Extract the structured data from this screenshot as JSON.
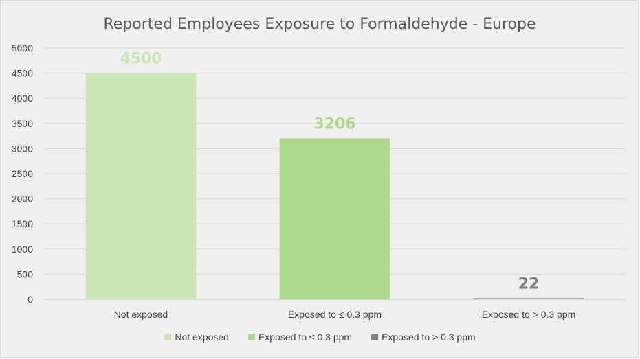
{
  "chart_data": {
    "type": "bar",
    "title": "Reported Employees Exposure to Formaldehyde - Europe",
    "xlabel": "",
    "ylabel": "",
    "categories": [
      "Not exposed",
      "Exposed to ≤ 0.3 ppm",
      "Exposed to > 0.3 ppm"
    ],
    "values": [
      4500,
      3206,
      22
    ],
    "data_labels": [
      "4500",
      "3206",
      "22"
    ],
    "colors": [
      "#c9e5b4",
      "#add98d",
      "#808080"
    ],
    "label_colors": [
      "#c9e5b4",
      "#add98d",
      "#808080"
    ],
    "ylim": [
      0,
      5000
    ],
    "yticks": [
      0,
      500,
      1000,
      1500,
      2000,
      2500,
      3000,
      3500,
      4000,
      4500,
      5000
    ],
    "grid": true,
    "legend": {
      "position": "bottom",
      "entries": [
        "Not exposed",
        "Exposed to ≤ 0.3 ppm",
        "Exposed to > 0.3 ppm"
      ]
    }
  }
}
